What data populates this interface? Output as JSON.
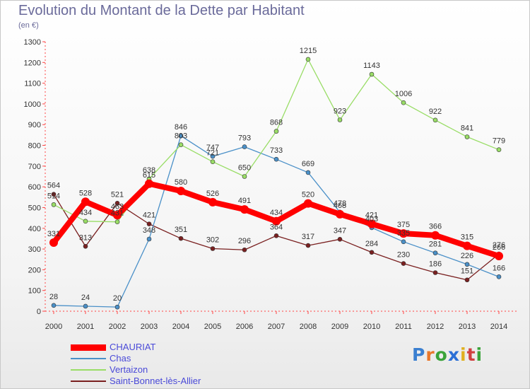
{
  "title": "Evolution du Montant de la Dette par Habitant",
  "unit_label": "(en €)",
  "logo": {
    "text": "Proxiti",
    "letter_colors": [
      "#3a7fd0",
      "#e8772a",
      "#3aa33a",
      "#2b6fd6",
      "#e0b020",
      "#d04040",
      "#3aa33a"
    ]
  },
  "chart_data": {
    "type": "line",
    "title": "Evolution du Montant de la Dette par Habitant",
    "ylabel": "(en €)",
    "xlabel": "",
    "x": [
      2000,
      2001,
      2002,
      2003,
      2004,
      2005,
      2006,
      2007,
      2008,
      2009,
      2010,
      2011,
      2012,
      2013,
      2014
    ],
    "ylim": [
      0,
      1300
    ],
    "ytick_step": 100,
    "grid": false,
    "legend_placement": "bottom-left",
    "series": [
      {
        "name": "CHAURIAT",
        "color": "#ff0000",
        "values": [
          331,
          528,
          463,
          615,
          580,
          526,
          491,
          434,
          520,
          468,
          421,
          375,
          366,
          315,
          266
        ],
        "labels": [
          "331",
          "528",
          "463",
          "615",
          "580",
          "526",
          "491",
          "434",
          "520",
          "468",
          "421",
          "375",
          "366",
          "315",
          "266"
        ]
      },
      {
        "name": "Chas",
        "color": "#4a90c8",
        "values": [
          28,
          24,
          20,
          348,
          846,
          747,
          793,
          733,
          669,
          478,
          403,
          335,
          281,
          226,
          166
        ],
        "labels": [
          "28",
          "24",
          "20",
          "348",
          "846",
          "747",
          "793",
          "733",
          "669",
          "478",
          "403",
          "335",
          "281",
          "226",
          "166"
        ]
      },
      {
        "name": "Vertaizon",
        "color": "#99dd66",
        "values": [
          514,
          434,
          431,
          638,
          803,
          721,
          650,
          868,
          1215,
          923,
          1143,
          1006,
          922,
          841,
          779
        ],
        "labels": [
          "514",
          "434",
          "431",
          "638",
          "803",
          "721",
          "650",
          "868",
          "1215",
          "923",
          "1143",
          "1006",
          "922",
          "841",
          "779"
        ]
      },
      {
        "name": "Saint-Bonnet-lès-Allier",
        "color": "#7a2020",
        "values": [
          564,
          313,
          521,
          421,
          351,
          302,
          296,
          364,
          317,
          347,
          284,
          230,
          186,
          151,
          276
        ],
        "labels": [
          "564",
          "313",
          "521",
          "421",
          "351",
          "302",
          "296",
          "364",
          "317",
          "347",
          "284",
          "230",
          "186",
          "151",
          "276"
        ]
      }
    ]
  }
}
